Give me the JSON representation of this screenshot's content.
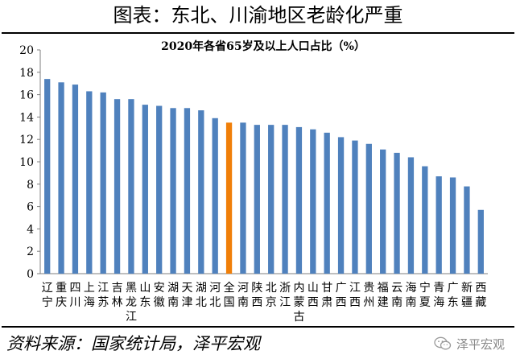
{
  "header": {
    "title": "图表：东北、川渝地区老龄化严重"
  },
  "footer": {
    "source": "资料来源：国家统计局，泽平宏观"
  },
  "watermark": {
    "text": "泽平宏观",
    "icon": "wechat-icon"
  },
  "colors": {
    "bar": "#4f81bd",
    "highlight": "#f07f09",
    "grid_axis": "#7f7f7f"
  },
  "chart_data": {
    "type": "bar",
    "title": "2020年各省65岁及以上人口占比（%）",
    "xlabel": "",
    "ylabel": "",
    "ylim": [
      0,
      20
    ],
    "y_ticks": [
      0,
      2,
      4,
      6,
      8,
      10,
      12,
      14,
      16,
      18,
      20
    ],
    "grid": false,
    "legend": "none",
    "highlight_category": "全国",
    "categories": [
      "辽宁",
      "重庆",
      "四川",
      "上海",
      "江苏",
      "吉林",
      "黑龙江",
      "山东",
      "安徽",
      "湖南",
      "天津",
      "湖北",
      "河北",
      "全国",
      "河南",
      "陕西",
      "北京",
      "浙江",
      "内蒙古",
      "山西",
      "甘肃",
      "广西",
      "江西",
      "贵州",
      "福建",
      "云南",
      "海南",
      "宁夏",
      "青海",
      "广东",
      "新疆",
      "西藏"
    ],
    "values": [
      17.4,
      17.1,
      16.9,
      16.3,
      16.2,
      15.6,
      15.6,
      15.1,
      15.0,
      14.8,
      14.8,
      14.6,
      13.9,
      13.5,
      13.5,
      13.3,
      13.3,
      13.3,
      13.1,
      12.9,
      12.6,
      12.2,
      11.9,
      11.6,
      11.1,
      10.8,
      10.4,
      9.6,
      8.7,
      8.6,
      7.8,
      5.7
    ]
  }
}
